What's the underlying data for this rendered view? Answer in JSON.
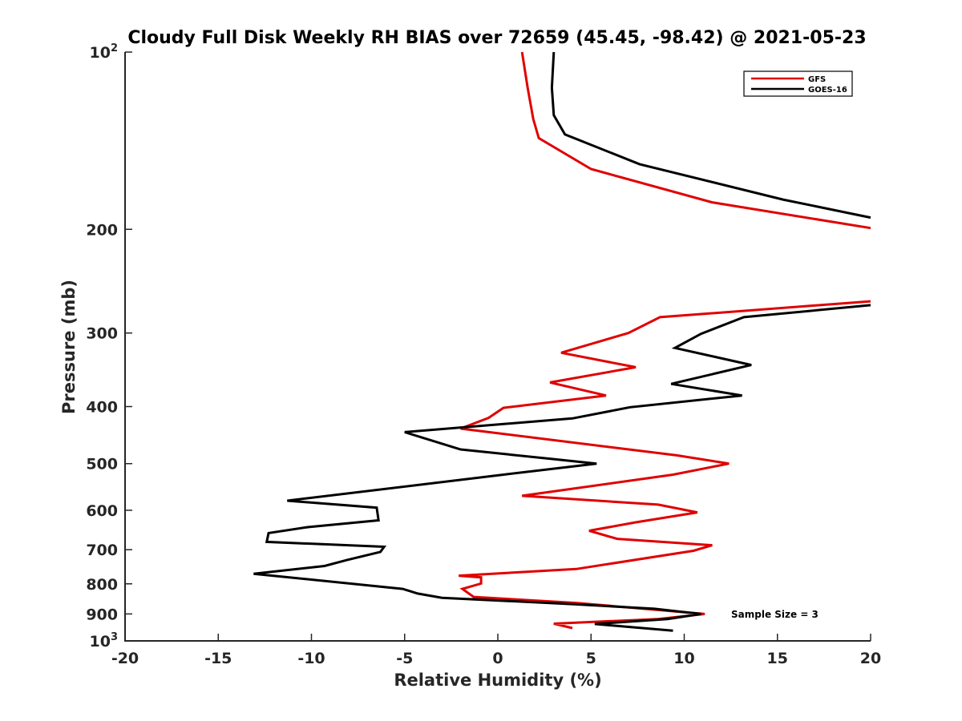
{
  "chart_data": {
    "type": "line",
    "title": "Cloudy Full Disk Weekly RH BIAS over 72659 (45.45, -98.42) @ 2021-05-23",
    "xlabel": "Relative Humidity (%)",
    "ylabel": "Pressure (mb)",
    "xlim": [
      -20,
      20
    ],
    "ylim": [
      100,
      1000
    ],
    "yscale": "log",
    "y_reversed": true,
    "grid": false,
    "legend_position": "top-right",
    "annotation": "Sample Size = 3",
    "x_ticks": [
      "-20",
      "-15",
      "-10",
      "-5",
      "0",
      "5",
      "10",
      "15",
      "20"
    ],
    "y_ticks": [
      {
        "value": 100,
        "base": "10",
        "exp": "2",
        "label": ""
      },
      {
        "value": 200,
        "label": "200"
      },
      {
        "value": 300,
        "label": "300"
      },
      {
        "value": 400,
        "label": "400"
      },
      {
        "value": 500,
        "label": "500"
      },
      {
        "value": 600,
        "label": "600"
      },
      {
        "value": 700,
        "label": "700"
      },
      {
        "value": 800,
        "label": "800"
      },
      {
        "value": 900,
        "label": "900"
      },
      {
        "value": 1000,
        "base": "10",
        "exp": "3",
        "label": ""
      }
    ],
    "series": [
      {
        "name": "GFS",
        "color": "#e00000",
        "segments": [
          [
            {
              "x": 1.3,
              "y": 100
            },
            {
              "x": 1.6,
              "y": 115
            },
            {
              "x": 1.9,
              "y": 130
            },
            {
              "x": 2.2,
              "y": 140
            },
            {
              "x": 5.0,
              "y": 158
            },
            {
              "x": 11.5,
              "y": 180
            },
            {
              "x": 20.0,
              "y": 199
            }
          ],
          [
            {
              "x": 20.0,
              "y": 265
            },
            {
              "x": 8.7,
              "y": 282
            },
            {
              "x": 7.0,
              "y": 300
            },
            {
              "x": 3.4,
              "y": 324
            },
            {
              "x": 7.4,
              "y": 343
            },
            {
              "x": 2.8,
              "y": 364
            },
            {
              "x": 5.8,
              "y": 383
            },
            {
              "x": 0.3,
              "y": 402
            },
            {
              "x": -0.5,
              "y": 418
            },
            {
              "x": -2.0,
              "y": 436
            },
            {
              "x": 9.6,
              "y": 484
            },
            {
              "x": 12.4,
              "y": 500
            },
            {
              "x": 9.4,
              "y": 522
            },
            {
              "x": 1.3,
              "y": 567
            },
            {
              "x": 8.6,
              "y": 587
            },
            {
              "x": 10.7,
              "y": 605
            },
            {
              "x": 7.4,
              "y": 629
            },
            {
              "x": 4.9,
              "y": 650
            },
            {
              "x": 6.4,
              "y": 671
            },
            {
              "x": 11.5,
              "y": 688
            },
            {
              "x": 10.5,
              "y": 703
            },
            {
              "x": 4.2,
              "y": 755
            },
            {
              "x": -2.1,
              "y": 775
            },
            {
              "x": -0.9,
              "y": 780
            },
            {
              "x": -0.9,
              "y": 799
            },
            {
              "x": -1.9,
              "y": 816
            },
            {
              "x": -1.3,
              "y": 842
            },
            {
              "x": 4.2,
              "y": 862
            },
            {
              "x": 11.1,
              "y": 900
            },
            {
              "x": 8.6,
              "y": 918
            },
            {
              "x": 3.0,
              "y": 935
            },
            {
              "x": 4.0,
              "y": 951
            }
          ]
        ]
      },
      {
        "name": "GOES-16",
        "color": "#000000",
        "segments": [
          [
            {
              "x": 3.0,
              "y": 100
            },
            {
              "x": 2.9,
              "y": 115
            },
            {
              "x": 3.0,
              "y": 128
            },
            {
              "x": 3.6,
              "y": 138
            },
            {
              "x": 7.6,
              "y": 155
            },
            {
              "x": 15.3,
              "y": 178
            },
            {
              "x": 20.0,
              "y": 191
            }
          ],
          [
            {
              "x": 20.0,
              "y": 269
            },
            {
              "x": 13.2,
              "y": 282
            },
            {
              "x": 10.9,
              "y": 301
            },
            {
              "x": 9.5,
              "y": 318
            },
            {
              "x": 13.6,
              "y": 340
            },
            {
              "x": 9.3,
              "y": 366
            },
            {
              "x": 13.1,
              "y": 383
            },
            {
              "x": 7.1,
              "y": 401
            },
            {
              "x": 4.0,
              "y": 419
            },
            {
              "x": -5.0,
              "y": 442
            },
            {
              "x": -2.0,
              "y": 473
            },
            {
              "x": 2.9,
              "y": 491
            },
            {
              "x": 5.3,
              "y": 500
            },
            {
              "x": 0.3,
              "y": 522
            },
            {
              "x": -11.3,
              "y": 578
            },
            {
              "x": -6.5,
              "y": 594
            },
            {
              "x": -6.4,
              "y": 624
            },
            {
              "x": -10.2,
              "y": 641
            },
            {
              "x": -12.3,
              "y": 656
            },
            {
              "x": -12.4,
              "y": 679
            },
            {
              "x": -6.1,
              "y": 692
            },
            {
              "x": -6.3,
              "y": 706
            },
            {
              "x": -8.1,
              "y": 729
            },
            {
              "x": -9.3,
              "y": 746
            },
            {
              "x": -13.1,
              "y": 769
            },
            {
              "x": -5.1,
              "y": 816
            },
            {
              "x": -4.3,
              "y": 831
            },
            {
              "x": -3.0,
              "y": 845
            },
            {
              "x": 4.0,
              "y": 866
            },
            {
              "x": 8.4,
              "y": 882
            },
            {
              "x": 10.9,
              "y": 900
            },
            {
              "x": 9.1,
              "y": 918
            },
            {
              "x": 5.2,
              "y": 936
            },
            {
              "x": 9.4,
              "y": 961
            }
          ]
        ]
      }
    ]
  }
}
